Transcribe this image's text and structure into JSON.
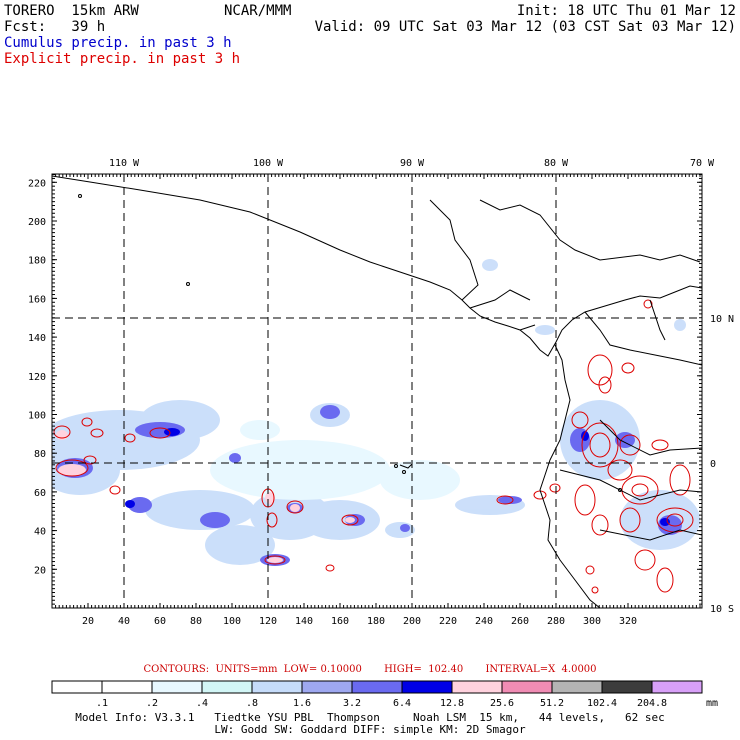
{
  "header": {
    "model": "TORERO  15km ARW",
    "org": "NCAR/MMM",
    "init": "Init: 18 UTC Thu 01 Mar 12",
    "fcst": "Fcst:   39 h",
    "valid": "Valid: 09 UTC Sat 03 Mar 12 (03 CST Sat 03 Mar 12)",
    "field1": "Cumulus precip. in past 3 h",
    "field2": "Explicit precip. in past 3 h"
  },
  "colors": {
    "field1": "#0000cc",
    "field2": "#dd0000",
    "coast": "#000000",
    "grid": "#000000"
  },
  "axes": {
    "x_ticks": [
      "20",
      "40",
      "60",
      "80",
      "100",
      "120",
      "140",
      "160",
      "180",
      "200",
      "220",
      "240",
      "260",
      "280",
      "300",
      "320"
    ],
    "y_ticks": [
      "20",
      "40",
      "60",
      "80",
      "100",
      "120",
      "140",
      "160",
      "180",
      "200",
      "220"
    ],
    "lon_labels": [
      "110 W",
      "100 W",
      "90 W",
      "80 W",
      "70 W"
    ],
    "lat_labels": [
      "10 N",
      "0",
      "10 S"
    ]
  },
  "contours_line": "CONTOURS:  UNITS=mm  LOW= 0.10000       HIGH=  102.40       INTERVAL=X  4.0000",
  "colorbar": {
    "labels": [
      ".1",
      ".2",
      ".4",
      ".8",
      "1.6",
      "3.2",
      "6.4",
      "12.8",
      "25.6",
      "51.2",
      "102.4",
      "204.8"
    ],
    "unit": "mm",
    "colors": [
      "#ffffff",
      "#ffffff",
      "#e8f8ff",
      "#d2f6f6",
      "#c6dcfa",
      "#9ea8f0",
      "#6a6af0",
      "#0000e6",
      "#ffd2de",
      "#f08cb4",
      "#b4b4b4",
      "#3c3c3c",
      "#d8a0f8"
    ]
  },
  "footer": {
    "line1": "Model Info: V3.3.1   Tiedtke YSU PBL  Thompson     Noah LSM  15 km,   44 levels,   62 sec",
    "line2": "LW: Godd SW: Goddard DIFF: simple KM: 2D Smagor"
  }
}
